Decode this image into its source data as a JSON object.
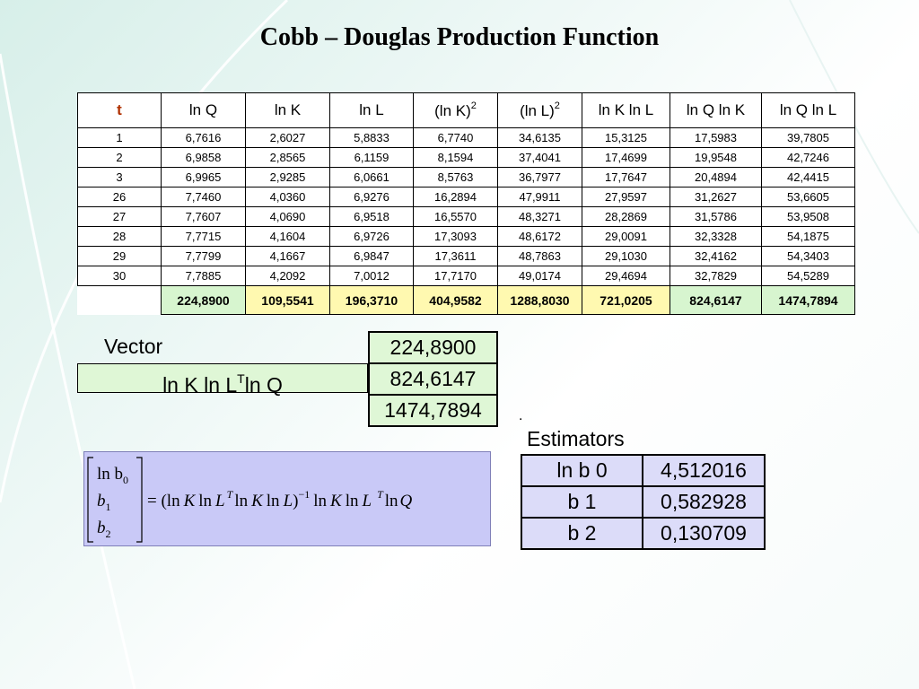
{
  "title": "Cobb – Douglas Production Function",
  "table": {
    "headers": [
      "t",
      "ln Q",
      "ln K",
      "ln L",
      "(ln K)",
      "(ln L)",
      "ln K ln L",
      "ln Q ln K",
      "ln Q ln L"
    ],
    "header_sup": [
      "",
      "",
      "",
      "",
      "2",
      "2",
      "",
      "",
      ""
    ],
    "rows": [
      [
        "1",
        "6,7616",
        "2,6027",
        "5,8833",
        "6,7740",
        "34,6135",
        "15,3125",
        "17,5983",
        "39,7805"
      ],
      [
        "2",
        "6,9858",
        "2,8565",
        "6,1159",
        "8,1594",
        "37,4041",
        "17,4699",
        "19,9548",
        "42,7246"
      ],
      [
        "3",
        "6,9965",
        "2,9285",
        "6,0661",
        "8,5763",
        "36,7977",
        "17,7647",
        "20,4894",
        "42,4415"
      ],
      [
        "26",
        "7,7460",
        "4,0360",
        "6,9276",
        "16,2894",
        "47,9911",
        "27,9597",
        "31,2627",
        "53,6605"
      ],
      [
        "27",
        "7,7607",
        "4,0690",
        "6,9518",
        "16,5570",
        "48,3271",
        "28,2869",
        "31,5786",
        "53,9508"
      ],
      [
        "28",
        "7,7715",
        "4,1604",
        "6,9726",
        "17,3093",
        "48,6172",
        "29,0091",
        "32,3328",
        "54,1875"
      ],
      [
        "29",
        "7,7799",
        "4,1667",
        "6,9847",
        "17,3611",
        "48,7863",
        "29,1030",
        "32,4162",
        "54,3403"
      ],
      [
        "30",
        "7,7885",
        "4,2092",
        "7,0012",
        "17,7170",
        "49,0174",
        "29,4694",
        "32,7829",
        "54,5289"
      ]
    ],
    "sums": [
      "224,8900",
      "109,5541",
      "196,3710",
      "404,9582",
      "1288,8030",
      "721,0205",
      "824,6147",
      "1474,7894"
    ],
    "sum_colors": [
      "green",
      "yellow",
      "yellow",
      "yellow",
      "yellow",
      "yellow",
      "green",
      "green"
    ]
  },
  "vector": {
    "label": "Vector",
    "name_part1": "ln K ln L",
    "name_sup": "T",
    "name_part2": "ln Q",
    "values": [
      "224,8900",
      "824,6147",
      "1474,7894"
    ]
  },
  "dot": ".",
  "estimators": {
    "label": "Estimators",
    "rows": [
      {
        "name": "ln b 0",
        "value": "4,512016"
      },
      {
        "name": "b 1",
        "value": "0,582928"
      },
      {
        "name": "b 2",
        "value": "0,130709"
      }
    ]
  },
  "formula": {
    "lhs": [
      "ln b",
      "0",
      "b",
      "1",
      "b",
      "2"
    ],
    "rhs_parts": [
      "= (ln",
      "K",
      "ln",
      "L",
      "T",
      "ln",
      "K",
      "ln",
      "L",
      ")",
      "−1",
      "ln",
      "K",
      "ln",
      "L",
      "T",
      "ln",
      "Q"
    ]
  }
}
